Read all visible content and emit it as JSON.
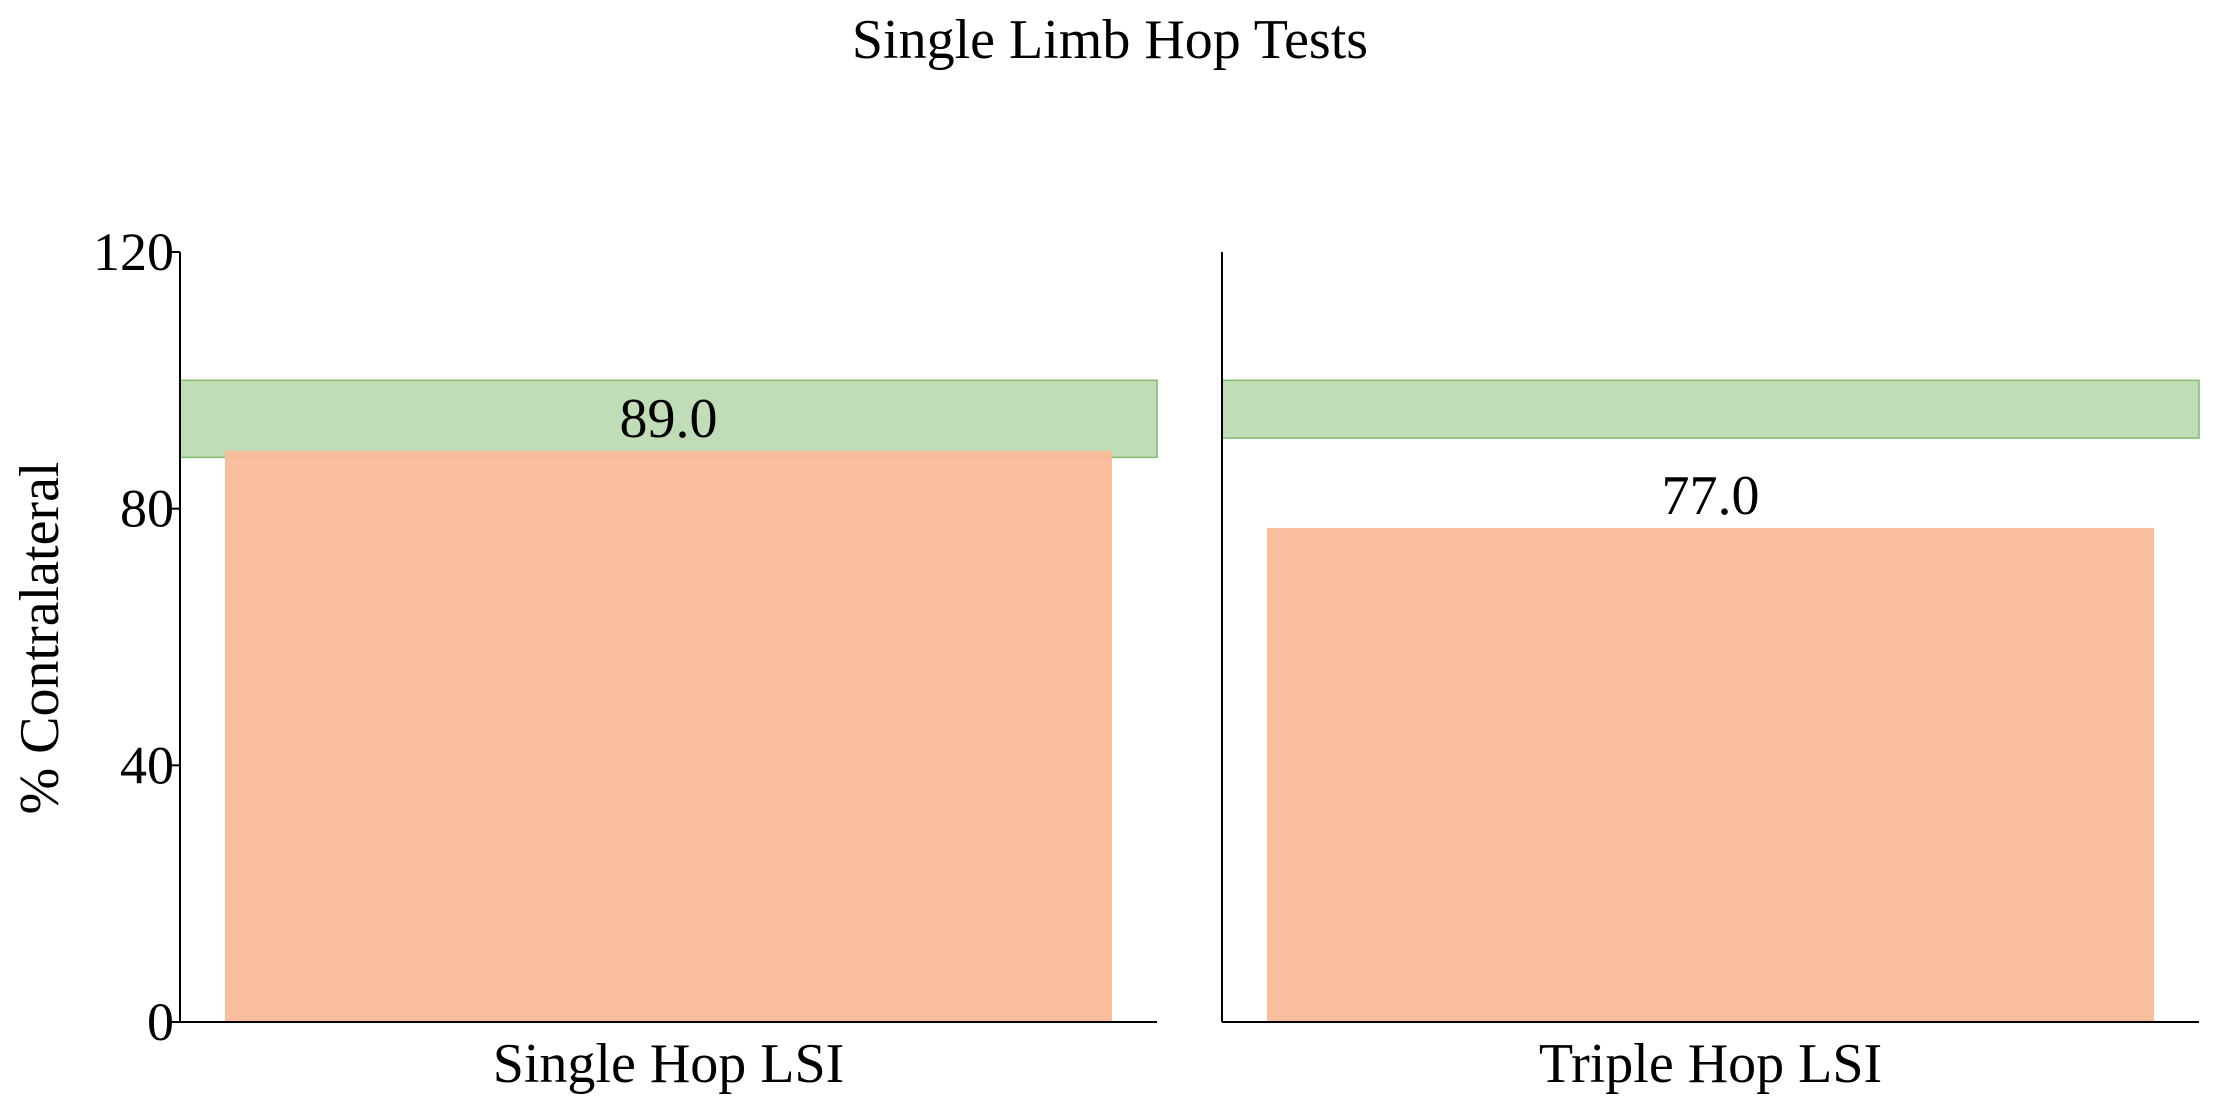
{
  "chart_data": {
    "type": "bar",
    "title": "Single Limb Hop Tests",
    "ylabel": "% Contralateral",
    "ylim": [
      0,
      120
    ],
    "yticks": [
      0,
      40,
      80,
      120
    ],
    "grid": false,
    "colors": {
      "bar": "#f8bb98",
      "band": "#a6cf98",
      "band_edge": "#7fba6e",
      "axis": "#000000"
    },
    "panels": [
      {
        "category": "Single Hop LSI",
        "value": 89.0,
        "value_label": "89.0",
        "band": [
          88,
          100
        ]
      },
      {
        "category": "Triple Hop LSI",
        "value": 77.0,
        "value_label": "77.0",
        "band": [
          91,
          100
        ]
      }
    ]
  }
}
